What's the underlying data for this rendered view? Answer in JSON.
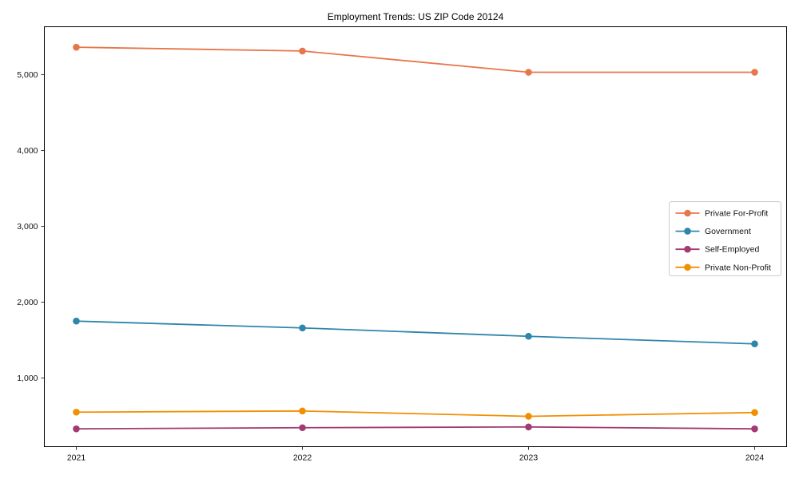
{
  "chart_data": {
    "type": "line",
    "title": "Employment Trends: US ZIP Code 20124",
    "xlabel": "",
    "ylabel": "",
    "x": [
      2021,
      2022,
      2023,
      2024
    ],
    "x_tick_labels": [
      "2021",
      "2022",
      "2023",
      "2024"
    ],
    "ytick_values": [
      1000,
      2000,
      3000,
      4000,
      5000
    ],
    "ytick_labels": [
      "1,000",
      "2,000",
      "3,000",
      "4,000",
      "5,000"
    ],
    "ylim": [
      95,
      5630
    ],
    "grid": false,
    "legend_position": "center-right",
    "marker": "circle",
    "series": [
      {
        "name": "Private For-Profit",
        "color": "#e8764b",
        "values": [
          5360,
          5310,
          5030,
          5030
        ]
      },
      {
        "name": "Government",
        "color": "#2e86ab",
        "values": [
          1750,
          1660,
          1550,
          1450
        ]
      },
      {
        "name": "Self-Employed",
        "color": "#a23b72",
        "values": [
          330,
          345,
          355,
          330
        ]
      },
      {
        "name": "Private Non-Profit",
        "color": "#f18f01",
        "values": [
          550,
          565,
          495,
          545
        ]
      }
    ],
    "colors": {
      "axis": "#000000",
      "background": "#ffffff",
      "legend_border": "#cccccc"
    }
  }
}
